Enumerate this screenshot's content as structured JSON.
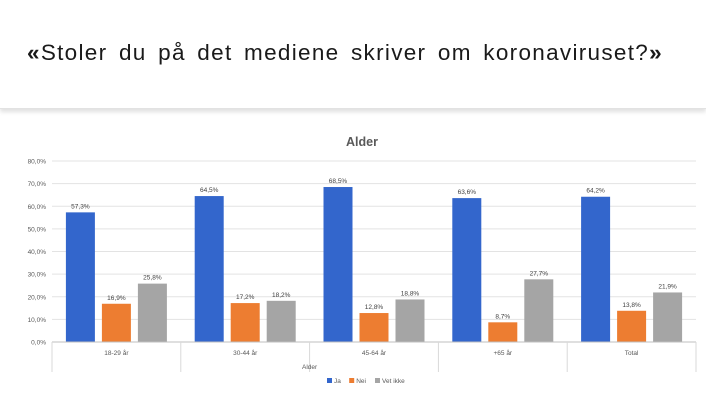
{
  "slide": {
    "open_quote": "«",
    "headline": "Stoler du på det mediene skriver om koronaviruset?",
    "close_quote": "»"
  },
  "colors": {
    "Ja": "#3366cc",
    "Nei": "#ed7d31",
    "Vet ikke": "#a5a5a5"
  },
  "chart_data": {
    "type": "bar",
    "title": "Alder",
    "xlabel": "Alder",
    "ylabel": "",
    "categories": [
      "18-29 år",
      "30-44 år",
      "45-64 år",
      "+65 år",
      "Total"
    ],
    "series": [
      {
        "name": "Ja",
        "values": [
          57.3,
          64.5,
          68.5,
          63.6,
          64.2
        ]
      },
      {
        "name": "Nei",
        "values": [
          16.9,
          17.2,
          12.8,
          8.7,
          13.8
        ]
      },
      {
        "name": "Vet ikke",
        "values": [
          25.8,
          18.2,
          18.8,
          27.7,
          21.9
        ]
      }
    ],
    "value_labels": [
      [
        "57,3%",
        "64,5%",
        "68,5%",
        "63,6%",
        "64,2%"
      ],
      [
        "16,9%",
        "17,2%",
        "12,8%",
        "8,7%",
        "13,8%"
      ],
      [
        "25,8%",
        "18,2%",
        "18,8%",
        "27,7%",
        "21,9%"
      ]
    ],
    "ylim": [
      0,
      80
    ],
    "y_ticks": [
      0,
      10,
      20,
      30,
      40,
      50,
      60,
      70,
      80
    ],
    "y_tick_labels": [
      "0,0%",
      "10,0%",
      "20,0%",
      "30,0%",
      "40,0%",
      "50,0%",
      "60,0%",
      "70,0%",
      "80,0%"
    ],
    "grid": true,
    "legend": "bottom"
  }
}
